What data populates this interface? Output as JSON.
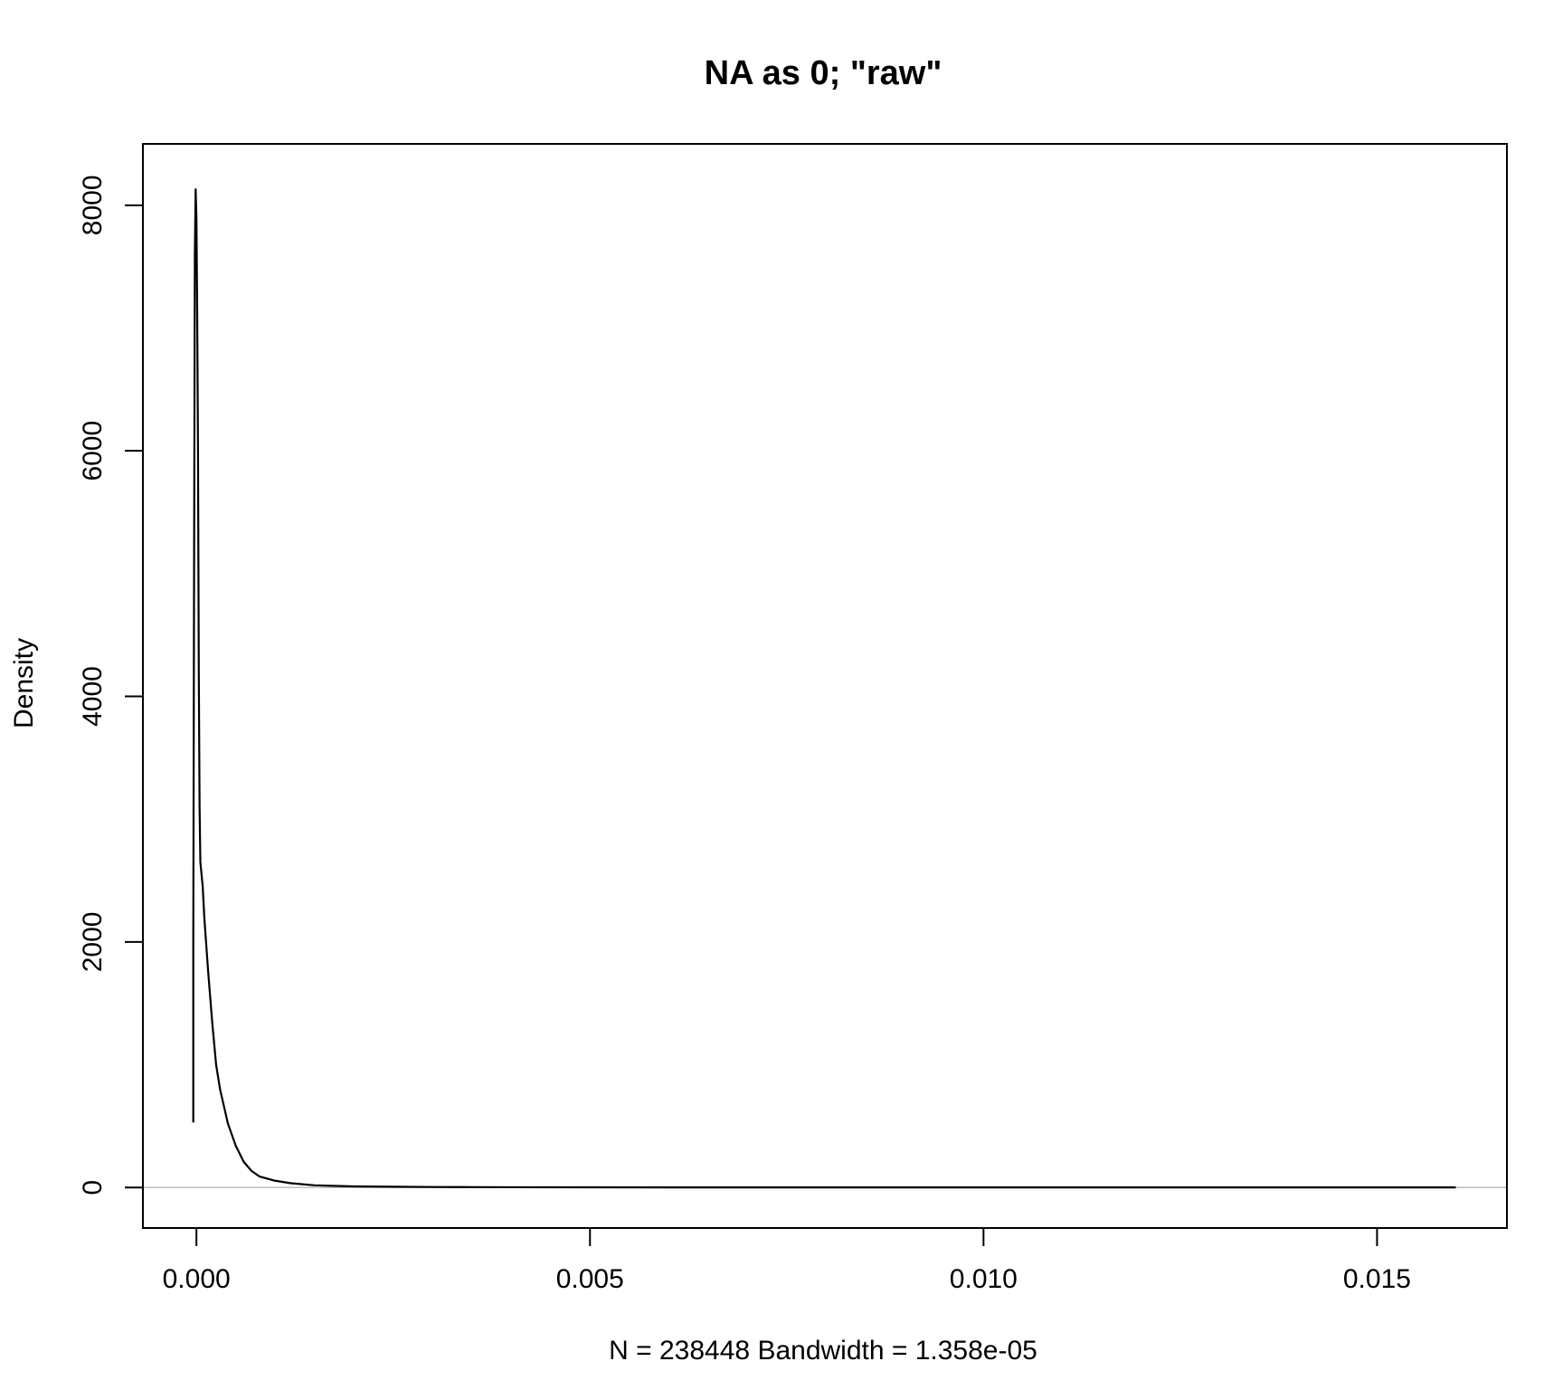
{
  "chart_data": {
    "type": "line",
    "title": "NA as 0; \"raw\"",
    "xlabel": "N = 238448   Bandwidth = 1.358e-05",
    "ylabel": "Density",
    "xlim": [
      -0.00068,
      0.01665
    ],
    "ylim": [
      -330,
      8500
    ],
    "x_ticks": [
      0.0,
      0.005,
      0.01,
      0.015
    ],
    "x_tick_labels": [
      "0.000",
      "0.005",
      "0.010",
      "0.015"
    ],
    "y_ticks": [
      0,
      2000,
      4000,
      6000,
      8000
    ],
    "y_tick_labels": [
      "0",
      "2000",
      "4000",
      "6000",
      "8000"
    ],
    "zero_line": true,
    "grid": false,
    "series": [
      {
        "x": [
          -4e-05,
          -4e-05,
          -3e-05,
          -2e-05,
          -1e-05,
          0.0,
          1e-05,
          2e-05,
          3e-05,
          4e-05,
          5e-05,
          8e-05,
          0.0001,
          0.00015,
          0.0002,
          0.00025,
          0.0003,
          0.0004,
          0.0005,
          0.0006,
          0.0007,
          0.0008,
          0.001,
          0.0012,
          0.0015,
          0.002,
          0.0025,
          0.003,
          0.0035,
          0.004,
          0.006,
          0.008,
          0.01,
          0.012,
          0.014,
          0.016
        ],
        "y": [
          530,
          2000,
          5000,
          7600,
          8130,
          7900,
          7100,
          6000,
          4200,
          3100,
          2650,
          2450,
          2200,
          1750,
          1350,
          1000,
          800,
          520,
          340,
          210,
          135,
          90,
          55,
          35,
          18,
          9,
          6,
          4,
          3,
          2,
          1,
          1,
          0.5,
          0.5,
          0.5,
          0.5
        ]
      }
    ]
  }
}
